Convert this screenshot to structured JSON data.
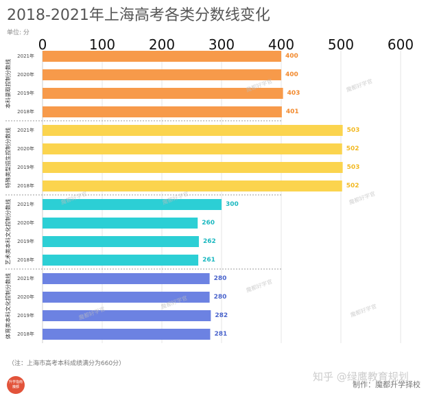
{
  "header": {
    "title": "2018-2021年上海高考各类分数线变化",
    "unit": "单位: 分"
  },
  "footnote": "（注：上海市高考本科成绩满分为660分）",
  "watermark": {
    "main": "知乎 @绿鹰教育规划",
    "sub": "制作：魔都升学择校",
    "overlay": "魔都好学官"
  },
  "logo": {
    "line1": "升学指南",
    "line2": "魔都"
  },
  "chart_data": {
    "type": "bar",
    "orientation": "horizontal",
    "xlim": [
      0,
      600
    ],
    "ticks": [
      0,
      100,
      200,
      300,
      400,
      500,
      600
    ],
    "grid": true,
    "groups": [
      {
        "name": "本科录取控制分数线",
        "color": "#f79a4a",
        "label_color": "#f28a2e",
        "items": [
          {
            "year": "2021年",
            "value": 400
          },
          {
            "year": "2020年",
            "value": 400
          },
          {
            "year": "2019年",
            "value": 403
          },
          {
            "year": "2018年",
            "value": 401
          }
        ]
      },
      {
        "name": "特殊类型招生控制分数线",
        "color": "#fbd44e",
        "label_color": "#f2b820",
        "items": [
          {
            "year": "2021年",
            "value": 503
          },
          {
            "year": "2020年",
            "value": 502
          },
          {
            "year": "2019年",
            "value": 503
          },
          {
            "year": "2018年",
            "value": 502
          }
        ]
      },
      {
        "name": "艺术类本科文化控制分数线",
        "color": "#2ccfd5",
        "label_color": "#1bb8c0",
        "items": [
          {
            "year": "2021年",
            "value": 300
          },
          {
            "year": "2020年",
            "value": 260
          },
          {
            "year": "2019年",
            "value": 262
          },
          {
            "year": "2018年",
            "value": 261
          }
        ]
      },
      {
        "name": "体育类本科文化控制分数线",
        "color": "#6c82e2",
        "label_color": "#4a64cc",
        "items": [
          {
            "year": "2021年",
            "value": 280
          },
          {
            "year": "2020年",
            "value": 280
          },
          {
            "year": "2019年",
            "value": 282
          },
          {
            "year": "2018年",
            "value": 281
          }
        ]
      }
    ]
  }
}
